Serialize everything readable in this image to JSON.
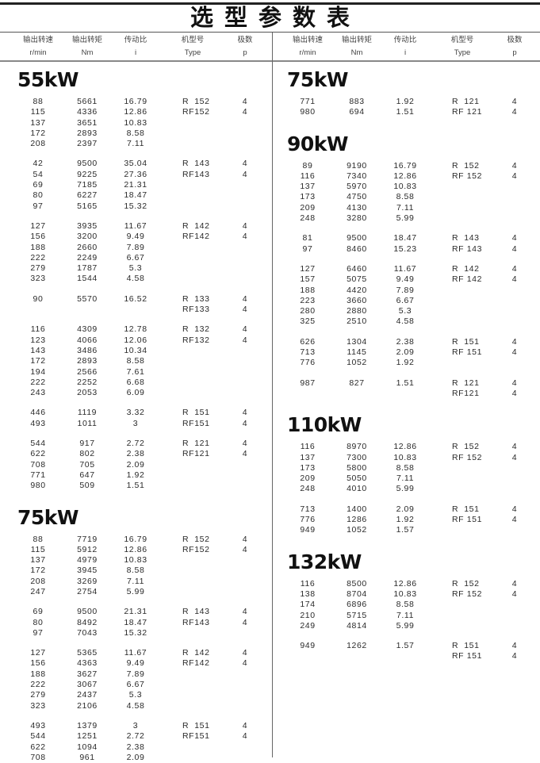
{
  "title": "选型参数表",
  "headers": [
    {
      "cn": "输出转速",
      "en": "r/min"
    },
    {
      "cn": "输出转矩",
      "en": "Nm"
    },
    {
      "cn": "传动比",
      "en": "i"
    },
    {
      "cn": "机型号",
      "en": "Type"
    },
    {
      "cn": "极数",
      "en": "p"
    }
  ],
  "left": [
    {
      "title": "55kW",
      "groups": [
        {
          "rows": [
            [
              "88",
              "5661",
              "16.79",
              "R  152",
              "4"
            ],
            [
              "115",
              "4336",
              "12.86",
              "RF152",
              "4"
            ],
            [
              "137",
              "3651",
              "10.83",
              "",
              ""
            ],
            [
              "172",
              "2893",
              "8.58",
              "",
              ""
            ],
            [
              "208",
              "2397",
              "7.11",
              "",
              ""
            ]
          ]
        },
        {
          "rows": [
            [
              "42",
              "9500",
              "35.04",
              "R  143",
              "4"
            ],
            [
              "54",
              "9225",
              "27.36",
              "RF143",
              "4"
            ],
            [
              "69",
              "7185",
              "21.31",
              "",
              ""
            ],
            [
              "80",
              "6227",
              "18.47",
              "",
              ""
            ],
            [
              "97",
              "5165",
              "15.32",
              "",
              ""
            ]
          ]
        },
        {
          "rows": [
            [
              "127",
              "3935",
              "11.67",
              "R  142",
              "4"
            ],
            [
              "156",
              "3200",
              "9.49",
              "RF142",
              "4"
            ],
            [
              "188",
              "2660",
              "7.89",
              "",
              ""
            ],
            [
              "222",
              "2249",
              "6.67",
              "",
              ""
            ],
            [
              "279",
              "1787",
              "5.3",
              "",
              ""
            ],
            [
              "323",
              "1544",
              "4.58",
              "",
              ""
            ]
          ]
        },
        {
          "rows": [
            [
              "90",
              "5570",
              "16.52",
              "R  133",
              "4"
            ],
            [
              "",
              "",
              "",
              "RF133",
              "4"
            ]
          ]
        },
        {
          "rows": [
            [
              "116",
              "4309",
              "12.78",
              "R  132",
              "4"
            ],
            [
              "123",
              "4066",
              "12.06",
              "RF132",
              "4"
            ],
            [
              "143",
              "3486",
              "10.34",
              "",
              ""
            ],
            [
              "172",
              "2893",
              "8.58",
              "",
              ""
            ],
            [
              "194",
              "2566",
              "7.61",
              "",
              ""
            ],
            [
              "222",
              "2252",
              "6.68",
              "",
              ""
            ],
            [
              "243",
              "2053",
              "6.09",
              "",
              ""
            ]
          ]
        },
        {
          "rows": [
            [
              "446",
              "1119",
              "3.32",
              "R  151",
              "4"
            ],
            [
              "493",
              "1011",
              "3",
              "RF151",
              "4"
            ]
          ]
        },
        {
          "rows": [
            [
              "544",
              "917",
              "2.72",
              "R  121",
              "4"
            ],
            [
              "622",
              "802",
              "2.38",
              "RF121",
              "4"
            ],
            [
              "708",
              "705",
              "2.09",
              "",
              ""
            ],
            [
              "771",
              "647",
              "1.92",
              "",
              ""
            ],
            [
              "980",
              "509",
              "1.51",
              "",
              ""
            ]
          ]
        }
      ]
    },
    {
      "title": "75kW",
      "groups": [
        {
          "rows": [
            [
              "88",
              "7719",
              "16.79",
              "R  152",
              "4"
            ],
            [
              "115",
              "5912",
              "12.86",
              "RF152",
              "4"
            ],
            [
              "137",
              "4979",
              "10.83",
              "",
              ""
            ],
            [
              "172",
              "3945",
              "8.58",
              "",
              ""
            ],
            [
              "208",
              "3269",
              "7.11",
              "",
              ""
            ],
            [
              "247",
              "2754",
              "5.99",
              "",
              ""
            ]
          ]
        },
        {
          "rows": [
            [
              "69",
              "9500",
              "21.31",
              "R  143",
              "4"
            ],
            [
              "80",
              "8492",
              "18.47",
              "RF143",
              "4"
            ],
            [
              "97",
              "7043",
              "15.32",
              "",
              ""
            ]
          ]
        },
        {
          "rows": [
            [
              "127",
              "5365",
              "11.67",
              "R  142",
              "4"
            ],
            [
              "156",
              "4363",
              "9.49",
              "RF142",
              "4"
            ],
            [
              "188",
              "3627",
              "7.89",
              "",
              ""
            ],
            [
              "222",
              "3067",
              "6.67",
              "",
              ""
            ],
            [
              "279",
              "2437",
              "5.3",
              "",
              ""
            ],
            [
              "323",
              "2106",
              "4.58",
              "",
              ""
            ]
          ]
        },
        {
          "rows": [
            [
              "493",
              "1379",
              "3",
              "R  151",
              "4"
            ],
            [
              "544",
              "1251",
              "2.72",
              "RF151",
              "4"
            ],
            [
              "622",
              "1094",
              "2.38",
              "",
              ""
            ],
            [
              "708",
              "961",
              "2.09",
              "",
              ""
            ]
          ]
        }
      ]
    }
  ],
  "right": [
    {
      "title": "75kW",
      "groups": [
        {
          "rows": [
            [
              "771",
              "883",
              "1.92",
              "R  121",
              "4"
            ],
            [
              "980",
              "694",
              "1.51",
              "RF 121",
              "4"
            ]
          ]
        }
      ]
    },
    {
      "title": "90kW",
      "groups": [
        {
          "rows": [
            [
              "89",
              "9190",
              "16.79",
              "R  152",
              "4"
            ],
            [
              "116",
              "7340",
              "12.86",
              "RF 152",
              "4"
            ],
            [
              "137",
              "5970",
              "10.83",
              "",
              ""
            ],
            [
              "173",
              "4750",
              "8.58",
              "",
              ""
            ],
            [
              "209",
              "4130",
              "7.11",
              "",
              ""
            ],
            [
              "248",
              "3280",
              "5.99",
              "",
              ""
            ]
          ]
        },
        {
          "rows": [
            [
              "81",
              "9500",
              "18.47",
              "R  143",
              "4"
            ],
            [
              "97",
              "8460",
              "15.23",
              "RF 143",
              "4"
            ]
          ]
        },
        {
          "rows": [
            [
              "127",
              "6460",
              "11.67",
              "R  142",
              "4"
            ],
            [
              "157",
              "5075",
              "9.49",
              "RF 142",
              "4"
            ],
            [
              "188",
              "4420",
              "7.89",
              "",
              ""
            ],
            [
              "223",
              "3660",
              "6.67",
              "",
              ""
            ],
            [
              "280",
              "2880",
              "5.3",
              "",
              ""
            ],
            [
              "325",
              "2510",
              "4.58",
              "",
              ""
            ]
          ]
        },
        {
          "rows": [
            [
              "626",
              "1304",
              "2.38",
              "R  151",
              "4"
            ],
            [
              "713",
              "1145",
              "2.09",
              "RF 151",
              "4"
            ],
            [
              "776",
              "1052",
              "1.92",
              "",
              ""
            ]
          ]
        },
        {
          "rows": [
            [
              "987",
              "827",
              "1.51",
              "R  121",
              "4"
            ],
            [
              "",
              "",
              "",
              "RF121",
              "4"
            ]
          ]
        }
      ]
    },
    {
      "title": "110kW",
      "groups": [
        {
          "rows": [
            [
              "116",
              "8970",
              "12.86",
              "R  152",
              "4"
            ],
            [
              "137",
              "7300",
              "10.83",
              "RF 152",
              "4"
            ],
            [
              "173",
              "5800",
              "8.58",
              "",
              ""
            ],
            [
              "209",
              "5050",
              "7.11",
              "",
              ""
            ],
            [
              "248",
              "4010",
              "5.99",
              "",
              ""
            ]
          ]
        },
        {
          "rows": [
            [
              "713",
              "1400",
              "2.09",
              "R  151",
              "4"
            ],
            [
              "776",
              "1286",
              "1.92",
              "RF 151",
              "4"
            ],
            [
              "949",
              "1052",
              "1.57",
              "",
              ""
            ]
          ]
        }
      ]
    },
    {
      "title": "132kW",
      "groups": [
        {
          "rows": [
            [
              "116",
              "8500",
              "12.86",
              "R  152",
              "4"
            ],
            [
              "138",
              "8704",
              "10.83",
              "RF 152",
              "4"
            ],
            [
              "174",
              "6896",
              "8.58",
              "",
              ""
            ],
            [
              "210",
              "5715",
              "7.11",
              "",
              ""
            ],
            [
              "249",
              "4814",
              "5.99",
              "",
              ""
            ]
          ]
        },
        {
          "rows": [
            [
              "949",
              "1262",
              "1.57",
              "R  151",
              "4"
            ],
            [
              "",
              "",
              "",
              "RF 151",
              "4"
            ]
          ]
        }
      ]
    }
  ]
}
